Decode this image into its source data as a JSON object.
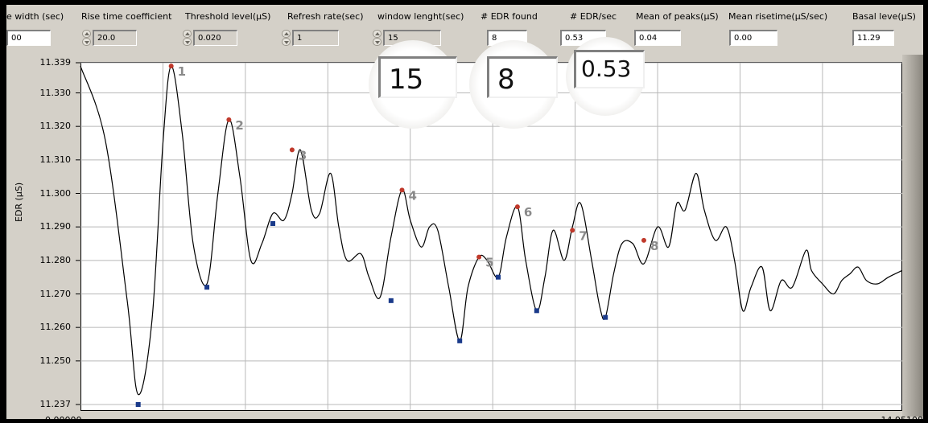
{
  "controls": [
    {
      "label": "e width (sec)",
      "value": "00",
      "stepper": false
    },
    {
      "label": "Rise time coefficient",
      "value": "20.0",
      "stepper": true
    },
    {
      "label": "Threshold  level(µS)",
      "value": "0.020",
      "stepper": true
    },
    {
      "label": "Refresh rate(sec)",
      "value": "1",
      "stepper": true
    },
    {
      "label": "window lenght(sec)",
      "value": "15",
      "stepper": true
    },
    {
      "label": "# EDR found",
      "value": "8",
      "stepper": false
    },
    {
      "label": "# EDR/sec",
      "value": "0.53",
      "stepper": false
    },
    {
      "label": "Mean of peaks(µS)",
      "value": "0.04",
      "stepper": false
    },
    {
      "label": "Mean risetime(µS/sec)",
      "value": "0.00",
      "stepper": false
    },
    {
      "label": "Basal leve(µS)",
      "value": "11.29",
      "stepper": false
    }
  ],
  "magnifiers": {
    "window_value": "15",
    "edr_found": "8",
    "edr_per_sec": "0.53"
  },
  "colors": {
    "peak_marker": "#c0392b",
    "trough_marker": "#1a3a8a",
    "peak_label": "#8a8a8a",
    "trace": "#000000",
    "grid": "#b8b8b8"
  },
  "chart_data": {
    "type": "line",
    "title": "",
    "xlabel": "",
    "ylabel": "EDR (µS)",
    "xlim": [
      0.0,
      14.95108
    ],
    "ylim": [
      11.237,
      11.339
    ],
    "x_tick_labels": [
      "0.00000",
      "14.95108"
    ],
    "y_ticks": [
      11.339,
      11.33,
      11.32,
      11.31,
      11.3,
      11.29,
      11.28,
      11.27,
      11.26,
      11.25,
      11.237
    ],
    "y_tick_labels": [
      "11.339",
      "11.330",
      "11.320",
      "11.310",
      "11.300",
      "11.290",
      "11.280",
      "11.270",
      "11.260",
      "11.250",
      "11.237"
    ],
    "x_gridlines": [
      1.5,
      3.0,
      4.5,
      6.0,
      7.5,
      9.0,
      10.5,
      12.0,
      13.5
    ],
    "grid": true,
    "series": [
      {
        "x": [
          0.0,
          0.45,
          0.85,
          1.05,
          1.3,
          1.5,
          1.65,
          1.85,
          2.05,
          2.3,
          2.5,
          2.7,
          2.9,
          3.1,
          3.3,
          3.5,
          3.7,
          3.85,
          4.0,
          4.2,
          4.35,
          4.55,
          4.7,
          4.85,
          5.1,
          5.25,
          5.45,
          5.65,
          5.85,
          6.0,
          6.2,
          6.35,
          6.5,
          6.7,
          6.9,
          7.05,
          7.25,
          7.4,
          7.6,
          7.75,
          7.95,
          8.1,
          8.3,
          8.45,
          8.6,
          8.8,
          8.95,
          9.1,
          9.3,
          9.45,
          9.55,
          9.7,
          9.85,
          10.05,
          10.25,
          10.5,
          10.7,
          10.85,
          11.0,
          11.2,
          11.35,
          11.55,
          11.75,
          11.9,
          12.05,
          12.2,
          12.4,
          12.55,
          12.75,
          12.95,
          13.2,
          13.3,
          13.5,
          13.7,
          13.85,
          14.0,
          14.15,
          14.3,
          14.5,
          14.7,
          14.95
        ],
        "y": [
          11.338,
          11.316,
          11.268,
          11.24,
          11.262,
          11.315,
          11.338,
          11.318,
          11.285,
          11.273,
          11.3,
          11.322,
          11.305,
          11.28,
          11.285,
          11.294,
          11.292,
          11.3,
          11.313,
          11.295,
          11.294,
          11.306,
          11.29,
          11.28,
          11.282,
          11.275,
          11.269,
          11.287,
          11.301,
          11.292,
          11.284,
          11.29,
          11.289,
          11.272,
          11.256,
          11.272,
          11.281,
          11.28,
          11.275,
          11.287,
          11.296,
          11.28,
          11.265,
          11.275,
          11.289,
          11.28,
          11.29,
          11.297,
          11.28,
          11.266,
          11.263,
          11.276,
          11.285,
          11.285,
          11.279,
          11.29,
          11.284,
          11.297,
          11.295,
          11.306,
          11.295,
          11.286,
          11.29,
          11.28,
          11.265,
          11.272,
          11.278,
          11.265,
          11.274,
          11.272,
          11.283,
          11.277,
          11.273,
          11.27,
          11.274,
          11.276,
          11.278,
          11.274,
          11.273,
          11.275,
          11.277
        ]
      }
    ],
    "peaks": [
      {
        "label": "1",
        "x": 1.65,
        "y": 11.338
      },
      {
        "label": "2",
        "x": 2.7,
        "y": 11.322
      },
      {
        "label": "3",
        "x": 3.85,
        "y": 11.313
      },
      {
        "label": "4",
        "x": 5.85,
        "y": 11.301
      },
      {
        "label": "5",
        "x": 7.25,
        "y": 11.281
      },
      {
        "label": "6",
        "x": 7.95,
        "y": 11.296
      },
      {
        "label": "7",
        "x": 8.95,
        "y": 11.289
      },
      {
        "label": "8",
        "x": 10.25,
        "y": 11.286
      }
    ],
    "troughs": [
      {
        "x": 1.05,
        "y": 11.237
      },
      {
        "x": 2.3,
        "y": 11.272
      },
      {
        "x": 3.5,
        "y": 11.291
      },
      {
        "x": 5.65,
        "y": 11.268
      },
      {
        "x": 6.9,
        "y": 11.256
      },
      {
        "x": 7.6,
        "y": 11.275
      },
      {
        "x": 8.3,
        "y": 11.265
      },
      {
        "x": 9.55,
        "y": 11.263
      }
    ]
  }
}
